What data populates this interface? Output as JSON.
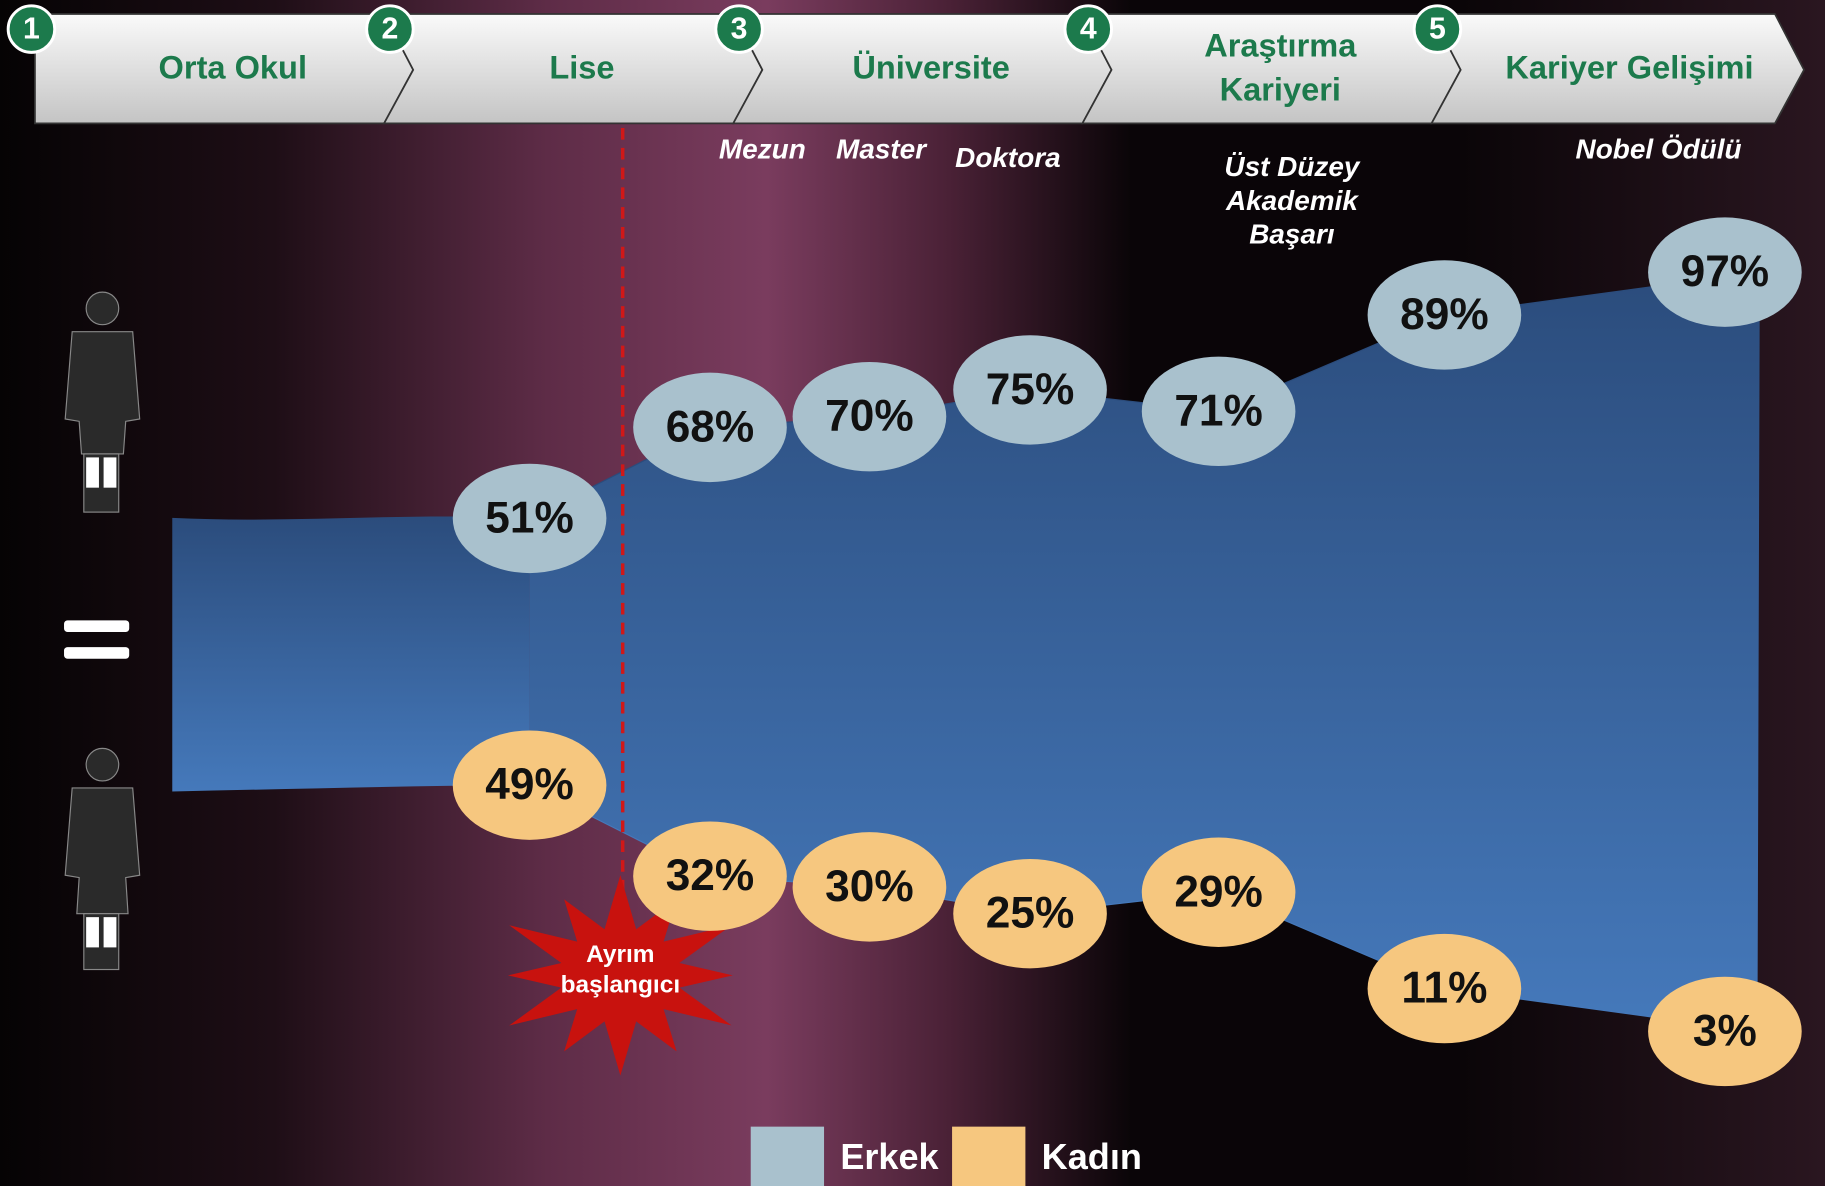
{
  "stages": [
    {
      "number": "1",
      "label": [
        "Orta Okul"
      ]
    },
    {
      "number": "2",
      "label": [
        "Lise"
      ]
    },
    {
      "number": "3",
      "label": [
        "Üniversite"
      ]
    },
    {
      "number": "4",
      "label": [
        "Araştırma",
        "Kariyeri"
      ]
    },
    {
      "number": "5",
      "label": [
        "Kariyer Gelişimi"
      ]
    }
  ],
  "milestones": [
    [
      "Mezun"
    ],
    [
      "Master"
    ],
    [
      "Doktora"
    ],
    [
      "Üst Düzey",
      "Akademik",
      "Başarı"
    ],
    [
      "Nobel Ödülü"
    ]
  ],
  "chart_data": {
    "type": "area",
    "series": [
      {
        "name": "Erkek",
        "color": "#a9c1cd",
        "values": [
          51,
          68,
          70,
          75,
          71,
          89,
          97
        ],
        "value_labels": [
          "51%",
          "68%",
          "70%",
          "75%",
          "71%",
          "89%",
          "97%"
        ]
      },
      {
        "name": "Kadın",
        "color": "#f6c77f",
        "values": [
          49,
          32,
          30,
          25,
          29,
          11,
          3
        ],
        "value_labels": [
          "49%",
          "32%",
          "30%",
          "25%",
          "29%",
          "11%",
          "3%"
        ]
      }
    ],
    "annotation": [
      "Ayrım",
      "başlangıcı"
    ]
  }
}
